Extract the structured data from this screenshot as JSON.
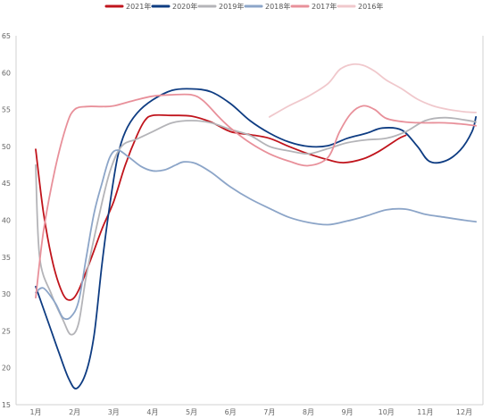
{
  "chart_data": {
    "type": "line",
    "title": "",
    "xlabel": "",
    "ylabel": "",
    "categories": [
      "1月",
      "2月",
      "3月",
      "4月",
      "5月",
      "6月",
      "7月",
      "8月",
      "9月",
      "10月",
      "11月",
      "12月"
    ],
    "ylim": [
      15,
      65
    ],
    "yticks": [
      15,
      20,
      25,
      30,
      35,
      40,
      45,
      50,
      55,
      60,
      65
    ],
    "grid": false,
    "legend_position": "top",
    "series": [
      {
        "name": "2021年",
        "color": "#c0141c",
        "points": [
          [
            1,
            49.6
          ],
          [
            1.2,
            41.0
          ],
          [
            1.45,
            34.0
          ],
          [
            1.7,
            30.0
          ],
          [
            1.9,
            29.2
          ],
          [
            2.1,
            30.5
          ],
          [
            2.4,
            34.5
          ],
          [
            2.7,
            38.8
          ],
          [
            3.0,
            42.5
          ],
          [
            3.3,
            47.5
          ],
          [
            3.6,
            51.5
          ],
          [
            3.8,
            53.5
          ],
          [
            4.0,
            54.2
          ],
          [
            4.5,
            54.2
          ],
          [
            5.0,
            54.1
          ],
          [
            5.5,
            53.3
          ],
          [
            6.0,
            52.0
          ],
          [
            6.5,
            51.6
          ],
          [
            7.0,
            51.1
          ],
          [
            7.5,
            50.0
          ],
          [
            8.0,
            49.0
          ],
          [
            8.5,
            48.2
          ],
          [
            8.9,
            47.8
          ],
          [
            9.4,
            48.3
          ],
          [
            9.8,
            49.3
          ],
          [
            10.3,
            51.0
          ],
          [
            10.5,
            51.5
          ]
        ]
      },
      {
        "name": "2020年",
        "color": "#0e3c82",
        "points": [
          [
            1,
            31.0
          ],
          [
            1.3,
            26.5
          ],
          [
            1.6,
            22.0
          ],
          [
            1.85,
            18.5
          ],
          [
            2.05,
            17.2
          ],
          [
            2.3,
            19.5
          ],
          [
            2.5,
            24.5
          ],
          [
            2.7,
            34.0
          ],
          [
            2.9,
            42.0
          ],
          [
            3.1,
            48.5
          ],
          [
            3.3,
            52.0
          ],
          [
            3.6,
            54.5
          ],
          [
            4.0,
            56.3
          ],
          [
            4.5,
            57.6
          ],
          [
            5.0,
            57.8
          ],
          [
            5.5,
            57.4
          ],
          [
            6.0,
            55.8
          ],
          [
            6.5,
            53.5
          ],
          [
            7.0,
            51.8
          ],
          [
            7.5,
            50.6
          ],
          [
            8.0,
            50.0
          ],
          [
            8.5,
            50.1
          ],
          [
            9.0,
            51.1
          ],
          [
            9.5,
            51.8
          ],
          [
            9.9,
            52.5
          ],
          [
            10.4,
            52.2
          ],
          [
            10.8,
            50.0
          ],
          [
            11.1,
            48.0
          ],
          [
            11.5,
            48.0
          ],
          [
            11.9,
            49.5
          ],
          [
            12.2,
            52.0
          ],
          [
            12.3,
            54.0
          ]
        ]
      },
      {
        "name": "2019年",
        "color": "#b4b4b8",
        "points": [
          [
            1,
            47.5
          ],
          [
            1.1,
            35.0
          ],
          [
            1.4,
            30.0
          ],
          [
            1.7,
            26.5
          ],
          [
            1.9,
            24.5
          ],
          [
            2.1,
            26.0
          ],
          [
            2.3,
            32.5
          ],
          [
            2.6,
            40.0
          ],
          [
            2.9,
            46.5
          ],
          [
            3.2,
            50.0
          ],
          [
            3.6,
            51.0
          ],
          [
            4.0,
            52.0
          ],
          [
            4.5,
            53.2
          ],
          [
            5.0,
            53.5
          ],
          [
            5.5,
            53.2
          ],
          [
            6.0,
            52.3
          ],
          [
            6.5,
            51.5
          ],
          [
            7.0,
            50.0
          ],
          [
            7.5,
            49.4
          ],
          [
            8.0,
            49.0
          ],
          [
            8.5,
            49.7
          ],
          [
            9.0,
            50.5
          ],
          [
            9.5,
            50.9
          ],
          [
            10.0,
            51.1
          ],
          [
            10.5,
            52.0
          ],
          [
            11.0,
            53.5
          ],
          [
            11.5,
            53.9
          ],
          [
            12.0,
            53.6
          ],
          [
            12.3,
            53.3
          ]
        ]
      },
      {
        "name": "2018年",
        "color": "#8ca5c8",
        "points": [
          [
            1,
            30.2
          ],
          [
            1.2,
            30.8
          ],
          [
            1.5,
            28.8
          ],
          [
            1.7,
            26.8
          ],
          [
            1.9,
            26.9
          ],
          [
            2.1,
            29.0
          ],
          [
            2.3,
            35.0
          ],
          [
            2.5,
            41.0
          ],
          [
            2.7,
            45.0
          ],
          [
            2.9,
            48.5
          ],
          [
            3.1,
            49.5
          ],
          [
            3.4,
            48.5
          ],
          [
            3.7,
            47.3
          ],
          [
            4.0,
            46.7
          ],
          [
            4.3,
            46.8
          ],
          [
            4.6,
            47.5
          ],
          [
            4.8,
            47.9
          ],
          [
            5.1,
            47.7
          ],
          [
            5.5,
            46.5
          ],
          [
            6.0,
            44.5
          ],
          [
            6.5,
            42.9
          ],
          [
            7.0,
            41.6
          ],
          [
            7.5,
            40.4
          ],
          [
            8.0,
            39.7
          ],
          [
            8.5,
            39.4
          ],
          [
            9.0,
            39.9
          ],
          [
            9.5,
            40.6
          ],
          [
            10.0,
            41.4
          ],
          [
            10.5,
            41.5
          ],
          [
            11.0,
            40.8
          ],
          [
            11.5,
            40.4
          ],
          [
            12.0,
            40.0
          ],
          [
            12.3,
            39.8
          ]
        ]
      },
      {
        "name": "2017年",
        "color": "#e8909a",
        "points": [
          [
            1,
            29.5
          ],
          [
            1.2,
            38.5
          ],
          [
            1.5,
            47.0
          ],
          [
            1.8,
            53.0
          ],
          [
            2.0,
            55.0
          ],
          [
            2.3,
            55.4
          ],
          [
            2.7,
            55.4
          ],
          [
            3.0,
            55.5
          ],
          [
            3.5,
            56.2
          ],
          [
            4.0,
            56.8
          ],
          [
            4.5,
            57.0
          ],
          [
            5.0,
            57.0
          ],
          [
            5.3,
            56.2
          ],
          [
            5.7,
            54.0
          ],
          [
            6.0,
            52.5
          ],
          [
            6.5,
            50.5
          ],
          [
            7.0,
            49.0
          ],
          [
            7.5,
            48.0
          ],
          [
            8.0,
            47.4
          ],
          [
            8.5,
            48.5
          ],
          [
            8.8,
            52.0
          ],
          [
            9.1,
            54.5
          ],
          [
            9.4,
            55.5
          ],
          [
            9.7,
            55.0
          ],
          [
            10.0,
            53.8
          ],
          [
            10.5,
            53.3
          ],
          [
            11.0,
            53.2
          ],
          [
            11.5,
            53.2
          ],
          [
            12.0,
            53.0
          ],
          [
            12.3,
            52.8
          ]
        ]
      },
      {
        "name": "2016年",
        "color": "#f0c8cc",
        "points": [
          [
            7.0,
            54.0
          ],
          [
            7.5,
            55.5
          ],
          [
            8.0,
            56.8
          ],
          [
            8.5,
            58.5
          ],
          [
            8.8,
            60.4
          ],
          [
            9.1,
            61.1
          ],
          [
            9.4,
            61.0
          ],
          [
            9.7,
            60.2
          ],
          [
            10.0,
            59.0
          ],
          [
            10.4,
            57.8
          ],
          [
            10.8,
            56.4
          ],
          [
            11.2,
            55.5
          ],
          [
            11.6,
            55.0
          ],
          [
            12.0,
            54.7
          ],
          [
            12.3,
            54.6
          ]
        ]
      }
    ]
  }
}
